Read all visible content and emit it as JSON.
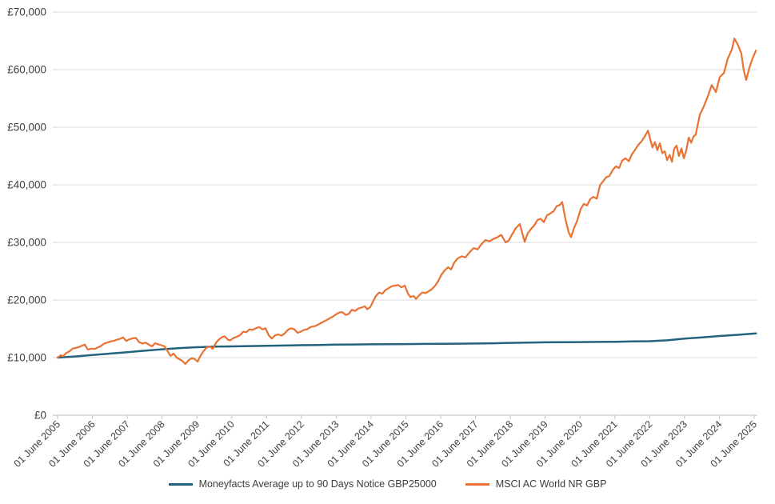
{
  "chart_data": {
    "type": "line",
    "title": "",
    "currency_symbol": "£",
    "legend_position": "bottom",
    "grid": "horizontal",
    "background_color": "#ffffff",
    "gridline_color": "#d9d9d9",
    "axis_line_color": "#bfbfbf",
    "label_color": "#404040",
    "y_axis": {
      "range": [
        0,
        70000
      ],
      "tick_step": 10000,
      "ticks": [
        {
          "label": "£0",
          "value": 0
        },
        {
          "label": "£10,000",
          "value": 10000
        },
        {
          "label": "£20,000",
          "value": 20000
        },
        {
          "label": "£30,000",
          "value": 30000
        },
        {
          "label": "£40,000",
          "value": 40000
        },
        {
          "label": "£50,000",
          "value": 50000
        },
        {
          "label": "£60,000",
          "value": 60000
        },
        {
          "label": "£70,000",
          "value": 70000
        }
      ]
    },
    "x_axis": {
      "tick_rotation_deg": -45,
      "ticks": [
        "01 June 2005",
        "01 June 2006",
        "01 June 2007",
        "01 June 2008",
        "01 June 2009",
        "01 June 2010",
        "01 June 2011",
        "01 June 2012",
        "01 June 2013",
        "01 June 2014",
        "01 June 2015",
        "01 June 2016",
        "01 June 2017",
        "01 June 2018",
        "01 June 2019",
        "01 June 2020",
        "01 June 2021",
        "01 June 2022",
        "01 June 2023",
        "01 June 2024",
        "01 June 2025"
      ]
    },
    "x_unit": "years_since_01_June_2005",
    "series": [
      {
        "name": "Moneyfacts Average up to 90 Days Notice GBP25000",
        "color": "#21637E",
        "stroke_width": 2.5,
        "points": [
          [
            0,
            10000
          ],
          [
            0.5,
            10200
          ],
          [
            1,
            10450
          ],
          [
            1.5,
            10700
          ],
          [
            2,
            10950
          ],
          [
            2.5,
            11200
          ],
          [
            3,
            11450
          ],
          [
            3.5,
            11650
          ],
          [
            4,
            11800
          ],
          [
            4.5,
            11900
          ],
          [
            5,
            11950
          ],
          [
            5.5,
            12000
          ],
          [
            6,
            12050
          ],
          [
            6.5,
            12100
          ],
          [
            7,
            12150
          ],
          [
            7.5,
            12200
          ],
          [
            8,
            12250
          ],
          [
            8.5,
            12280
          ],
          [
            9,
            12300
          ],
          [
            9.5,
            12330
          ],
          [
            10,
            12350
          ],
          [
            10.5,
            12380
          ],
          [
            11,
            12400
          ],
          [
            11.5,
            12420
          ],
          [
            12,
            12450
          ],
          [
            12.5,
            12480
          ],
          [
            13,
            12550
          ],
          [
            13.5,
            12600
          ],
          [
            14,
            12650
          ],
          [
            14.5,
            12680
          ],
          [
            15,
            12700
          ],
          [
            15.5,
            12720
          ],
          [
            16,
            12750
          ],
          [
            16.5,
            12800
          ],
          [
            17,
            12850
          ],
          [
            17.5,
            13000
          ],
          [
            18,
            13300
          ],
          [
            18.5,
            13500
          ],
          [
            19,
            13750
          ],
          [
            19.5,
            13950
          ],
          [
            20.05,
            14200
          ]
        ]
      },
      {
        "name": "MSCI AC World NR GBP",
        "color": "#E97132",
        "stroke_width": 2.2,
        "points": [
          [
            0,
            10000
          ],
          [
            0.09,
            10400
          ],
          [
            0.16,
            10250
          ],
          [
            0.25,
            10800
          ],
          [
            0.34,
            11100
          ],
          [
            0.44,
            11600
          ],
          [
            0.53,
            11700
          ],
          [
            0.62,
            11850
          ],
          [
            0.71,
            12100
          ],
          [
            0.78,
            12250
          ],
          [
            0.87,
            11400
          ],
          [
            0.96,
            11550
          ],
          [
            1.06,
            11500
          ],
          [
            1.15,
            11750
          ],
          [
            1.24,
            12000
          ],
          [
            1.33,
            12400
          ],
          [
            1.42,
            12600
          ],
          [
            1.52,
            12800
          ],
          [
            1.61,
            12900
          ],
          [
            1.7,
            13100
          ],
          [
            1.79,
            13250
          ],
          [
            1.88,
            13500
          ],
          [
            1.97,
            12900
          ],
          [
            2.07,
            13200
          ],
          [
            2.16,
            13350
          ],
          [
            2.25,
            13400
          ],
          [
            2.34,
            12700
          ],
          [
            2.43,
            12450
          ],
          [
            2.53,
            12600
          ],
          [
            2.62,
            12250
          ],
          [
            2.71,
            11950
          ],
          [
            2.8,
            12500
          ],
          [
            2.89,
            12300
          ],
          [
            2.98,
            12150
          ],
          [
            3.08,
            11900
          ],
          [
            3.17,
            11000
          ],
          [
            3.24,
            10300
          ],
          [
            3.33,
            10700
          ],
          [
            3.42,
            10000
          ],
          [
            3.51,
            9700
          ],
          [
            3.6,
            9300
          ],
          [
            3.67,
            8900
          ],
          [
            3.77,
            9600
          ],
          [
            3.86,
            9900
          ],
          [
            3.95,
            9700
          ],
          [
            4.02,
            9300
          ],
          [
            4.11,
            10400
          ],
          [
            4.2,
            11200
          ],
          [
            4.29,
            11800
          ],
          [
            4.39,
            11900
          ],
          [
            4.45,
            11500
          ],
          [
            4.55,
            12600
          ],
          [
            4.64,
            13200
          ],
          [
            4.73,
            13600
          ],
          [
            4.8,
            13700
          ],
          [
            4.89,
            13100
          ],
          [
            4.96,
            13000
          ],
          [
            5.05,
            13400
          ],
          [
            5.14,
            13600
          ],
          [
            5.24,
            13900
          ],
          [
            5.33,
            14500
          ],
          [
            5.42,
            14400
          ],
          [
            5.51,
            14900
          ],
          [
            5.6,
            14800
          ],
          [
            5.69,
            15100
          ],
          [
            5.79,
            15300
          ],
          [
            5.88,
            14900
          ],
          [
            5.97,
            15100
          ],
          [
            6.06,
            13900
          ],
          [
            6.15,
            13300
          ],
          [
            6.25,
            13900
          ],
          [
            6.34,
            14000
          ],
          [
            6.43,
            13800
          ],
          [
            6.52,
            14200
          ],
          [
            6.61,
            14800
          ],
          [
            6.7,
            15100
          ],
          [
            6.8,
            14900
          ],
          [
            6.89,
            14300
          ],
          [
            6.98,
            14500
          ],
          [
            7.07,
            14800
          ],
          [
            7.16,
            14900
          ],
          [
            7.26,
            15300
          ],
          [
            7.35,
            15400
          ],
          [
            7.44,
            15600
          ],
          [
            7.53,
            15900
          ],
          [
            7.62,
            16200
          ],
          [
            7.72,
            16500
          ],
          [
            7.81,
            16800
          ],
          [
            7.9,
            17100
          ],
          [
            7.99,
            17500
          ],
          [
            8.08,
            17800
          ],
          [
            8.17,
            17900
          ],
          [
            8.27,
            17400
          ],
          [
            8.36,
            17600
          ],
          [
            8.45,
            18300
          ],
          [
            8.54,
            18100
          ],
          [
            8.63,
            18500
          ],
          [
            8.73,
            18700
          ],
          [
            8.82,
            18900
          ],
          [
            8.89,
            18400
          ],
          [
            8.98,
            18800
          ],
          [
            9.07,
            19900
          ],
          [
            9.14,
            20700
          ],
          [
            9.23,
            21300
          ],
          [
            9.32,
            21100
          ],
          [
            9.41,
            21700
          ],
          [
            9.51,
            22100
          ],
          [
            9.6,
            22400
          ],
          [
            9.69,
            22500
          ],
          [
            9.78,
            22600
          ],
          [
            9.87,
            22200
          ],
          [
            9.97,
            22500
          ],
          [
            10.06,
            21100
          ],
          [
            10.13,
            20500
          ],
          [
            10.22,
            20700
          ],
          [
            10.29,
            20200
          ],
          [
            10.38,
            20800
          ],
          [
            10.47,
            21300
          ],
          [
            10.56,
            21200
          ],
          [
            10.65,
            21500
          ],
          [
            10.75,
            21900
          ],
          [
            10.84,
            22500
          ],
          [
            10.93,
            23300
          ],
          [
            11.02,
            24400
          ],
          [
            11.11,
            25100
          ],
          [
            11.21,
            25700
          ],
          [
            11.3,
            25300
          ],
          [
            11.39,
            26500
          ],
          [
            11.48,
            27200
          ],
          [
            11.6,
            27600
          ],
          [
            11.71,
            27400
          ],
          [
            11.83,
            28300
          ],
          [
            11.94,
            29000
          ],
          [
            12.06,
            28800
          ],
          [
            12.17,
            29700
          ],
          [
            12.28,
            30400
          ],
          [
            12.4,
            30200
          ],
          [
            12.51,
            30600
          ],
          [
            12.63,
            30900
          ],
          [
            12.74,
            31300
          ],
          [
            12.86,
            30000
          ],
          [
            12.95,
            30300
          ],
          [
            13.04,
            31300
          ],
          [
            13.16,
            32500
          ],
          [
            13.27,
            33200
          ],
          [
            13.41,
            30100
          ],
          [
            13.5,
            31600
          ],
          [
            13.59,
            32300
          ],
          [
            13.69,
            33000
          ],
          [
            13.78,
            33900
          ],
          [
            13.87,
            34100
          ],
          [
            13.96,
            33500
          ],
          [
            14.05,
            34700
          ],
          [
            14.14,
            35000
          ],
          [
            14.24,
            35400
          ],
          [
            14.33,
            36300
          ],
          [
            14.42,
            36500
          ],
          [
            14.49,
            37000
          ],
          [
            14.58,
            34000
          ],
          [
            14.67,
            31800
          ],
          [
            14.74,
            30900
          ],
          [
            14.83,
            32500
          ],
          [
            14.92,
            33800
          ],
          [
            15.02,
            35800
          ],
          [
            15.11,
            36700
          ],
          [
            15.2,
            36400
          ],
          [
            15.29,
            37500
          ],
          [
            15.38,
            37900
          ],
          [
            15.48,
            37600
          ],
          [
            15.57,
            39900
          ],
          [
            15.66,
            40600
          ],
          [
            15.75,
            41300
          ],
          [
            15.84,
            41500
          ],
          [
            15.94,
            42600
          ],
          [
            16.03,
            43200
          ],
          [
            16.12,
            42900
          ],
          [
            16.21,
            44200
          ],
          [
            16.3,
            44600
          ],
          [
            16.4,
            44100
          ],
          [
            16.49,
            45300
          ],
          [
            16.58,
            46100
          ],
          [
            16.67,
            46900
          ],
          [
            16.76,
            47500
          ],
          [
            16.85,
            48300
          ],
          [
            16.95,
            49400
          ],
          [
            17.02,
            47800
          ],
          [
            17.08,
            46500
          ],
          [
            17.15,
            47400
          ],
          [
            17.22,
            46000
          ],
          [
            17.29,
            47200
          ],
          [
            17.36,
            45500
          ],
          [
            17.43,
            45800
          ],
          [
            17.5,
            44300
          ],
          [
            17.57,
            45200
          ],
          [
            17.64,
            44000
          ],
          [
            17.7,
            46200
          ],
          [
            17.77,
            46800
          ],
          [
            17.84,
            45000
          ],
          [
            17.91,
            46300
          ],
          [
            17.98,
            44600
          ],
          [
            18.05,
            46000
          ],
          [
            18.12,
            48200
          ],
          [
            18.19,
            47300
          ],
          [
            18.26,
            48400
          ],
          [
            18.32,
            48700
          ],
          [
            18.44,
            52200
          ],
          [
            18.55,
            53600
          ],
          [
            18.67,
            55400
          ],
          [
            18.78,
            57300
          ],
          [
            18.9,
            56100
          ],
          [
            19.01,
            58700
          ],
          [
            19.13,
            59400
          ],
          [
            19.24,
            61900
          ],
          [
            19.36,
            63500
          ],
          [
            19.43,
            65400
          ],
          [
            19.54,
            64200
          ],
          [
            19.63,
            62800
          ],
          [
            19.7,
            59900
          ],
          [
            19.77,
            58200
          ],
          [
            19.86,
            60300
          ],
          [
            19.95,
            61900
          ],
          [
            20.05,
            63300
          ]
        ]
      }
    ]
  },
  "legend": {
    "items": [
      {
        "label": "Moneyfacts Average up to 90 Days Notice GBP25000"
      },
      {
        "label": "MSCI AC World NR GBP"
      }
    ]
  }
}
